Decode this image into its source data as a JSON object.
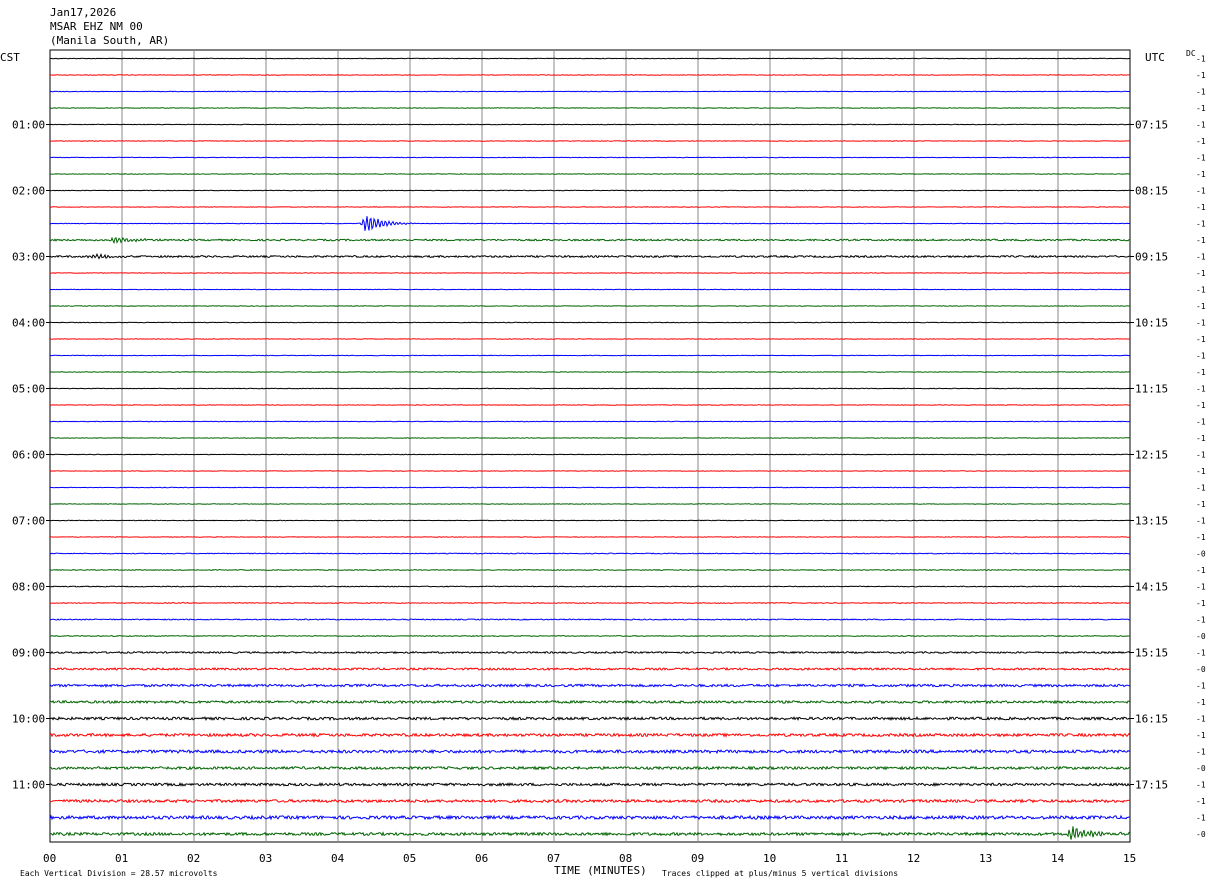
{
  "header": {
    "date": "Jan17,2026",
    "station": "MSAR EHZ NM 00",
    "location": "(Manila South, AR)"
  },
  "left_tz": "CST",
  "right_tz": "UTC",
  "dc_label": "DC",
  "footer": {
    "vertical_division": "Each Vertical Division =   28.57 microvolts",
    "clip_note": "Traces clipped at plus/minus 5 vertical divisions"
  },
  "chart_data": {
    "type": "line",
    "title": "",
    "xlabel": "TIME (MINUTES)",
    "ylabel": "",
    "xlim": [
      0,
      15
    ],
    "x_ticks": [
      "00",
      "01",
      "02",
      "03",
      "04",
      "05",
      "06",
      "07",
      "08",
      "09",
      "10",
      "11",
      "12",
      "13",
      "14",
      "15"
    ],
    "left_hour_labels": [
      "01:00",
      "02:00",
      "03:00",
      "04:00",
      "05:00",
      "06:00",
      "07:00",
      "08:00",
      "09:00",
      "10:00",
      "11:00"
    ],
    "right_hour_labels": [
      "07:15",
      "08:15",
      "09:15",
      "10:15",
      "11:15",
      "12:15",
      "13:15",
      "14:15",
      "15:15",
      "16:15",
      "17:15"
    ],
    "trace_colors": [
      "#000000",
      "#ff0000",
      "#0000ff",
      "#006400"
    ],
    "trace_count": 48,
    "trace_minutes": 15,
    "dc_offsets": [
      "-1",
      "-1",
      "-1",
      "-1",
      "-1",
      "-1",
      "-1",
      "-1",
      "-1",
      "-1",
      "-1",
      "-1",
      "-1",
      "-1",
      "-1",
      "-1",
      "-1",
      "-1",
      "-1",
      "-1",
      "-1",
      "-1",
      "-1",
      "-1",
      "-1",
      "-1",
      "-1",
      "-1",
      "-1",
      "-1",
      "-0",
      "-1",
      "-1",
      "-1",
      "-1",
      "-0",
      "-1",
      "-0",
      "-1",
      "-1",
      "-1",
      "-1",
      "-1",
      "-0",
      "-1",
      "-1",
      "-1",
      "-0"
    ],
    "noise_level": [
      0.3,
      0.3,
      0.3,
      0.3,
      0.3,
      0.3,
      0.3,
      0.3,
      0.3,
      0.3,
      0.3,
      0.8,
      0.9,
      0.3,
      0.3,
      0.3,
      0.3,
      0.3,
      0.3,
      0.3,
      0.3,
      0.3,
      0.3,
      0.3,
      0.3,
      0.3,
      0.3,
      0.3,
      0.3,
      0.3,
      0.4,
      0.4,
      0.4,
      0.4,
      0.5,
      0.4,
      0.8,
      1.0,
      1.2,
      1.2,
      1.3,
      1.4,
      1.5,
      1.3,
      1.3,
      1.4,
      1.6,
      1.4
    ],
    "events": [
      {
        "trace": 10,
        "minute": 4.4,
        "amplitude": 11
      },
      {
        "trace": 11,
        "minute": 0.9,
        "amplitude": 4
      },
      {
        "trace": 12,
        "minute": 0.6,
        "amplitude": 3
      },
      {
        "trace": 47,
        "minute": 14.2,
        "amplitude": 9
      }
    ]
  }
}
